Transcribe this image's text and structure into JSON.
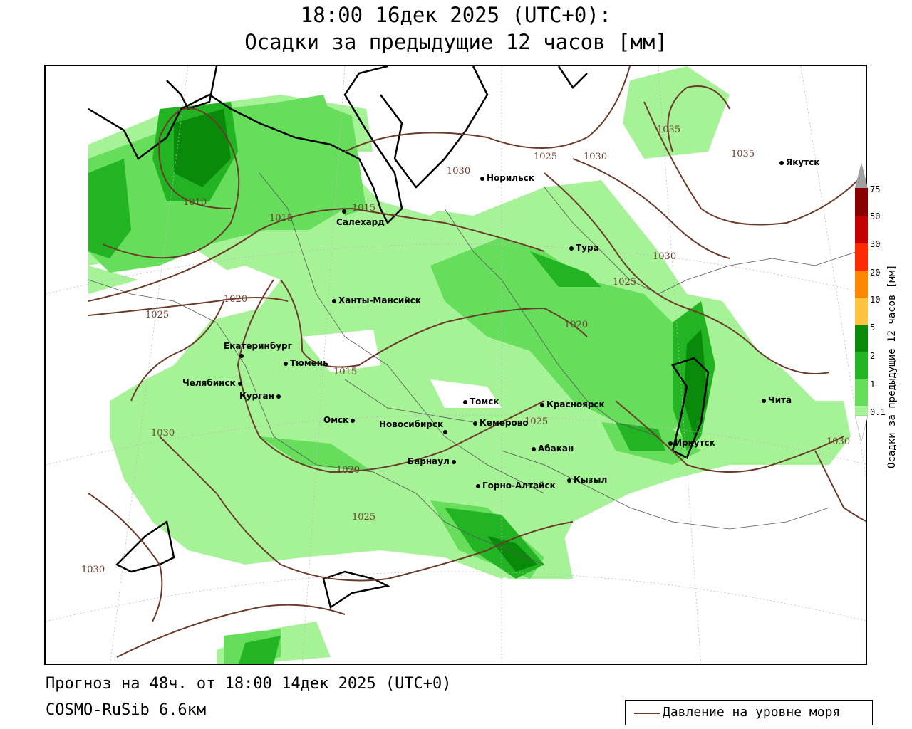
{
  "title": {
    "line1": "18:00 16дек 2025 (UTC+0):",
    "line2": "Осадки за предыдущие 12 часов [мм]"
  },
  "footer": {
    "forecast": "Прогноз на 48ч. от 18:00 14дек 2025 (UTC+0)",
    "model": "COSMO-RuSib 6.6км"
  },
  "legend": {
    "label": "Давление на уровне моря"
  },
  "colorbar": {
    "title": "Осадки за предыдущие 12 часов [мм]",
    "levels": [
      "0.1",
      "1",
      "2",
      "5",
      "10",
      "20",
      "30",
      "50",
      "75"
    ],
    "colors": [
      "#a6f296",
      "#66de5c",
      "#22b422",
      "#0a8a0a",
      "#ffc341",
      "#ff8800",
      "#ff2a00",
      "#c40000",
      "#8a0000",
      "#a0a0a0"
    ]
  },
  "cities": [
    {
      "name": "Норильск"
    },
    {
      "name": "Якутск"
    },
    {
      "name": "Салехард"
    },
    {
      "name": "Тура"
    },
    {
      "name": "Ханты-Мансийск"
    },
    {
      "name": "Екатеринбург"
    },
    {
      "name": "Тюмень"
    },
    {
      "name": "Челябинск"
    },
    {
      "name": "Курган"
    },
    {
      "name": "Омск"
    },
    {
      "name": "Томск"
    },
    {
      "name": "Красноярск"
    },
    {
      "name": "Новосибирск"
    },
    {
      "name": "Кемерово"
    },
    {
      "name": "Барнаул"
    },
    {
      "name": "Абакан"
    },
    {
      "name": "Горно-Алтайск"
    },
    {
      "name": "Кызыл"
    },
    {
      "name": "Иркутск"
    },
    {
      "name": "Чита"
    }
  ],
  "isobars": [
    "1035",
    "1035",
    "1025",
    "1030",
    "1030",
    "1010",
    "1015",
    "1015",
    "1030",
    "1025",
    "1020",
    "1020",
    "1025",
    "1015",
    "1025",
    "1030",
    "1020",
    "1025",
    "1030",
    "1030"
  ]
}
